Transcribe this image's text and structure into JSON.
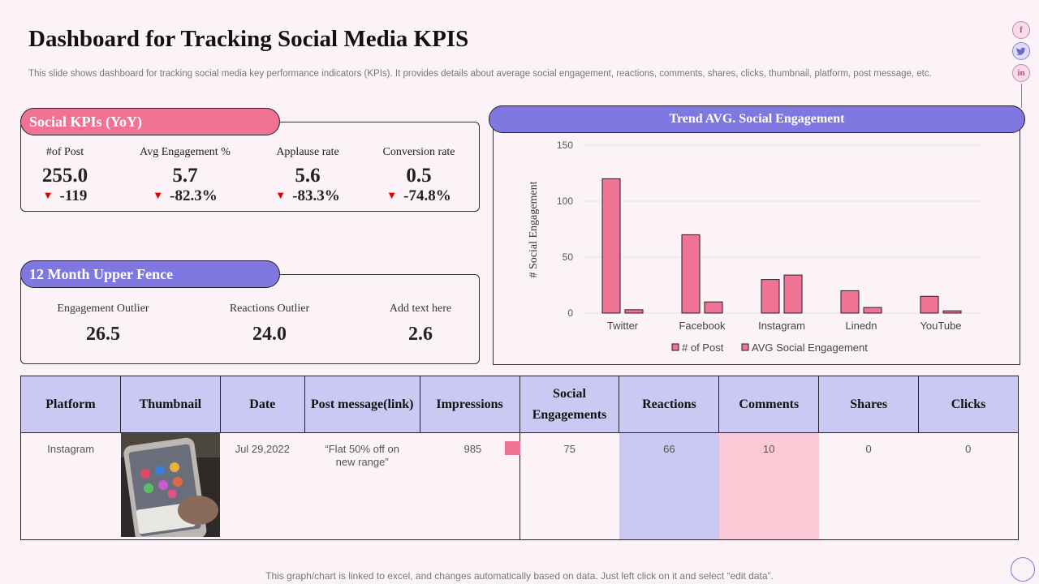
{
  "title": "Dashboard for Tracking Social Media KPIS",
  "subtitle": "This slide shows dashboard for tracking social media key performance indicators (KPIs). It provides details about average social engagement, reactions, comments, shares, clicks, thumbnail, platform, post message, etc.",
  "social_icons": [
    "f",
    "t",
    "in"
  ],
  "kpi_panel": {
    "title": "Social KPIs (YoY)",
    "items": [
      {
        "label": "#of Post",
        "value": "255.0",
        "change": "-119"
      },
      {
        "label": "Avg Engagement %",
        "value": "5.7",
        "change": "-82.3%"
      },
      {
        "label": "Applause rate",
        "value": "5.6",
        "change": "-83.3%"
      },
      {
        "label": "Conversion rate",
        "value": "0.5",
        "change": "-74.8%"
      }
    ]
  },
  "fence_panel": {
    "title": "12 Month Upper Fence",
    "items": [
      {
        "label": "Engagement Outlier",
        "value": "26.5"
      },
      {
        "label": "Reactions Outlier",
        "value": "24.0"
      },
      {
        "label": "Add text here",
        "value": "2.6"
      }
    ]
  },
  "chart_title": "Trend AVG. Social Engagement",
  "chart_data": {
    "type": "bar",
    "categories": [
      "Twitter",
      "Facebook",
      "Instagram",
      "Linedn",
      "YouTube"
    ],
    "series": [
      {
        "name": "# of Post",
        "values": [
          120,
          70,
          30,
          20,
          15
        ],
        "color": "#f07395"
      },
      {
        "name": "AVG Social Engagement",
        "values": [
          3,
          10,
          34,
          5,
          2
        ],
        "color": "#f07395"
      }
    ],
    "ylabel": "# Social Engagement",
    "yticks": [
      "0",
      "50",
      "100",
      "150"
    ],
    "ylim": [
      0,
      150
    ],
    "legend": "bottom"
  },
  "table": {
    "headers": [
      "Platform",
      "Thumbnail",
      "Date",
      "Post message(link)",
      "Impressions",
      "Social Engagements",
      "Reactions",
      "Comments",
      "Shares",
      "Clicks"
    ],
    "row": {
      "platform": "Instagram",
      "date": "Jul 29,2022",
      "message": "“Flat 50% off on new range”",
      "impressions": "985",
      "engagements": "75",
      "reactions": "66",
      "comments": "10",
      "shares": "0",
      "clicks": "0"
    }
  },
  "footer": "This graph/chart is linked to excel, and changes automatically based on data. Just left click on it and select “edit data”.",
  "colors": {
    "pink": "#f07395",
    "purple": "#7f78e0",
    "lavender": "#cbc8f3",
    "light_pink": "#fcc9d6"
  }
}
